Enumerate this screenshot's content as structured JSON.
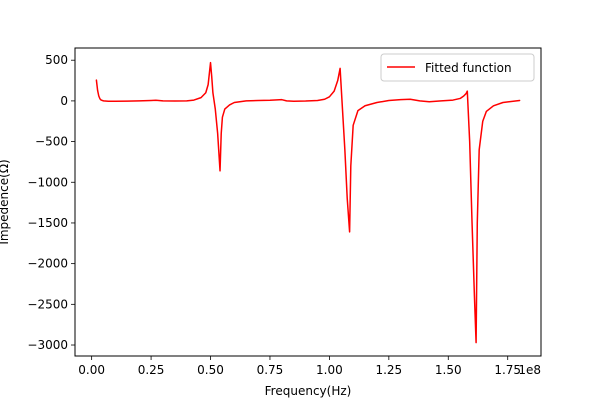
{
  "chart_data": {
    "type": "line",
    "title": "",
    "xlabel": "Frequency(Hz)",
    "ylabel": "Impedence(Ω)",
    "x_offset_label": "1e8",
    "xlim": [
      -0.07,
      1.89
    ],
    "ylim": [
      -3135,
      650
    ],
    "x_ticks": [
      0.0,
      0.25,
      0.5,
      0.75,
      1.0,
      1.25,
      1.5,
      1.75
    ],
    "x_tick_labels": [
      "0.00",
      "0.25",
      "0.50",
      "0.75",
      "1.00",
      "1.25",
      "1.50",
      "1.75"
    ],
    "y_ticks": [
      500,
      0,
      -500,
      -1000,
      -1500,
      -2000,
      -2500,
      -3000
    ],
    "y_tick_labels": [
      "500",
      "0",
      "−500",
      "−1000",
      "−1500",
      "−2000",
      "−2500",
      "−3000"
    ],
    "grid": false,
    "legend_position": "top-right",
    "series": [
      {
        "name": "Fitted function",
        "color": "#ff0000",
        "x": [
          0.02,
          0.025,
          0.03,
          0.035,
          0.04,
          0.05,
          0.07,
          0.1,
          0.15,
          0.2,
          0.25,
          0.27,
          0.3,
          0.35,
          0.4,
          0.43,
          0.46,
          0.48,
          0.49,
          0.5,
          0.505,
          0.51,
          0.52,
          0.53,
          0.54,
          0.545,
          0.55,
          0.56,
          0.58,
          0.6,
          0.65,
          0.7,
          0.75,
          0.8,
          0.82,
          0.85,
          0.9,
          0.95,
          0.98,
          1.0,
          1.02,
          1.035,
          1.045,
          1.055,
          1.065,
          1.075,
          1.085,
          1.09,
          1.1,
          1.12,
          1.15,
          1.2,
          1.25,
          1.3,
          1.34,
          1.38,
          1.42,
          1.47,
          1.52,
          1.55,
          1.565,
          1.575,
          1.58,
          1.59,
          1.6,
          1.61,
          1.617,
          1.622,
          1.63,
          1.645,
          1.66,
          1.69,
          1.73,
          1.8
        ],
        "y": [
          255,
          130,
          60,
          25,
          10,
          0,
          -5,
          -5,
          -3,
          0,
          5,
          8,
          0,
          -2,
          0,
          10,
          40,
          100,
          200,
          470,
          300,
          100,
          -100,
          -400,
          -860,
          -400,
          -200,
          -100,
          -50,
          -20,
          0,
          5,
          8,
          15,
          0,
          -5,
          -2,
          5,
          20,
          50,
          120,
          250,
          400,
          -100,
          -600,
          -1200,
          -1610,
          -800,
          -300,
          -120,
          -60,
          -20,
          5,
          15,
          20,
          0,
          -10,
          0,
          10,
          30,
          60,
          90,
          120,
          -500,
          -1500,
          -2400,
          -2970,
          -1500,
          -600,
          -250,
          -130,
          -60,
          -20,
          5
        ]
      }
    ]
  }
}
